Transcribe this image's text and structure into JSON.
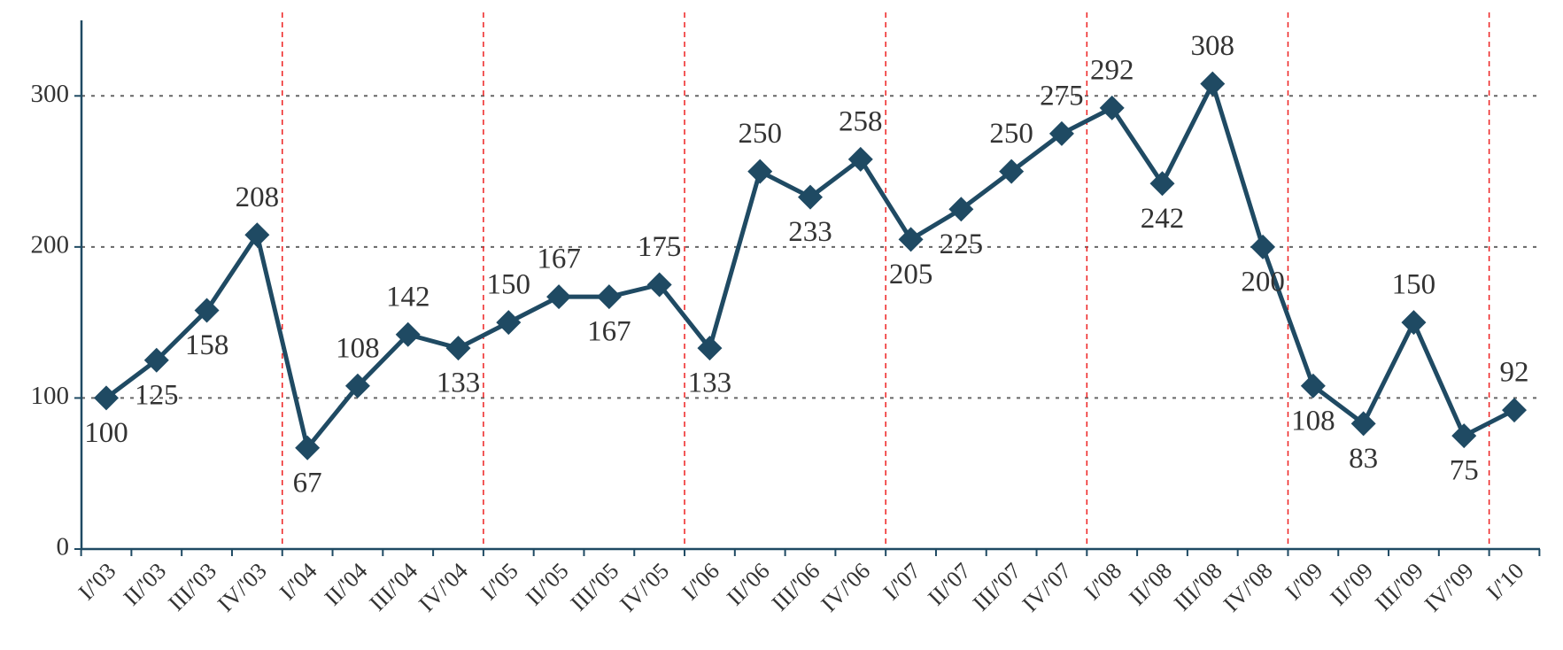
{
  "chart_data": {
    "type": "line",
    "categories": [
      "I/'03",
      "II/'03",
      "III/'03",
      "IV/'03",
      "I/'04",
      "II/'04",
      "III/'04",
      "IV/'04",
      "I/'05",
      "II/'05",
      "III/'05",
      "IV/'05",
      "I/'06",
      "II/'06",
      "III/'06",
      "IV/'06",
      "I/'07",
      "II/'07",
      "III/'07",
      "IV/'07",
      "I/'08",
      "II/'08",
      "III/'08",
      "IV/'08",
      "I/'09",
      "II/'09",
      "III/'09",
      "IV/'09",
      "I/'10"
    ],
    "values": [
      100,
      125,
      158,
      208,
      67,
      108,
      142,
      133,
      150,
      167,
      167,
      175,
      133,
      250,
      233,
      258,
      205,
      225,
      250,
      275,
      292,
      242,
      308,
      200,
      108,
      83,
      150,
      75,
      92
    ],
    "color": "#1f4a63",
    "ylim": [
      0,
      350
    ],
    "yticks": [
      0,
      100,
      200,
      300
    ],
    "grid": true
  }
}
